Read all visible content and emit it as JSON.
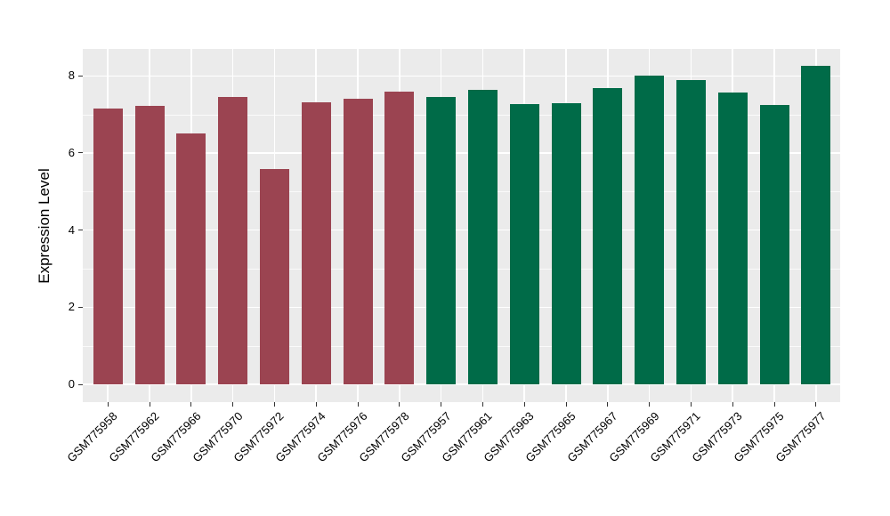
{
  "figure": {
    "background": "#FFFFFF"
  },
  "chart_data": {
    "type": "bar",
    "title": "",
    "xlabel": "",
    "ylabel": "Expression Level",
    "ylim": [
      0,
      8.7
    ],
    "yticks": [
      0,
      2,
      4,
      6,
      8
    ],
    "grid": true,
    "grid_style": "white major and minor horizontal lines, white vertical lines at bar centers, on gray panel",
    "legend_position": "none",
    "panel_background": "#EBEBEB",
    "gridline_color": "#FFFFFF",
    "axis_tick_color": "#333333",
    "text_color": "#000000",
    "categories": [
      "GSM775958",
      "GSM775962",
      "GSM775966",
      "GSM775970",
      "GSM775972",
      "GSM775974",
      "GSM775976",
      "GSM775978",
      "GSM775957",
      "GSM775961",
      "GSM775963",
      "GSM775965",
      "GSM775967",
      "GSM775969",
      "GSM775971",
      "GSM775973",
      "GSM775975",
      "GSM775977"
    ],
    "values": [
      7.16,
      7.23,
      6.5,
      7.46,
      5.59,
      7.31,
      7.4,
      7.58,
      7.45,
      7.64,
      7.27,
      7.29,
      7.68,
      8.0,
      7.88,
      7.57,
      7.24,
      8.26
    ],
    "groups": [
      {
        "name": "left-group-maroon",
        "color": "#9B4451",
        "start_index": 0,
        "end_index": 7
      },
      {
        "name": "right-group-green",
        "color": "#006B48",
        "start_index": 8,
        "end_index": 17
      }
    ]
  }
}
